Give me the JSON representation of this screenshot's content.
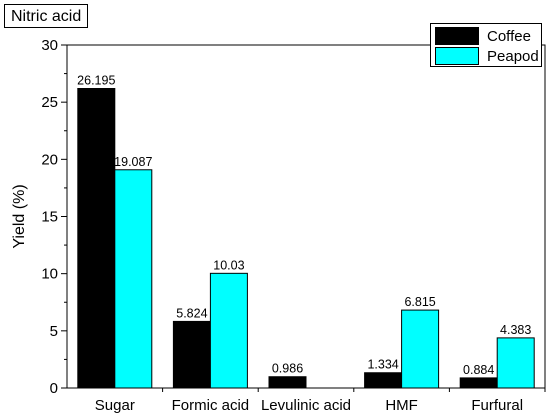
{
  "chart_data": {
    "type": "bar",
    "title": "Nitric acid",
    "ylabel": "Yield (%)",
    "xlabel": "",
    "categories": [
      "Sugar",
      "Formic acid",
      "Levulinic acid",
      "HMF",
      "Furfural"
    ],
    "series": [
      {
        "name": "Coffee",
        "color": "#000000",
        "values": [
          26.195,
          5.824,
          0.986,
          1.334,
          0.884
        ],
        "labels": [
          "26.195",
          "5.824",
          "0.986",
          "1.334",
          "0.884"
        ]
      },
      {
        "name": "Peapod",
        "color": "#00ffff",
        "values": [
          19.087,
          10.03,
          null,
          6.815,
          4.383
        ],
        "labels": [
          "19.087",
          "10.03",
          "",
          "6.815",
          "4.383"
        ]
      }
    ],
    "ylim": [
      0,
      30
    ],
    "yticks": [
      0,
      5,
      10,
      15,
      20,
      25,
      30
    ],
    "grid": false,
    "legend_position": "top-right"
  }
}
